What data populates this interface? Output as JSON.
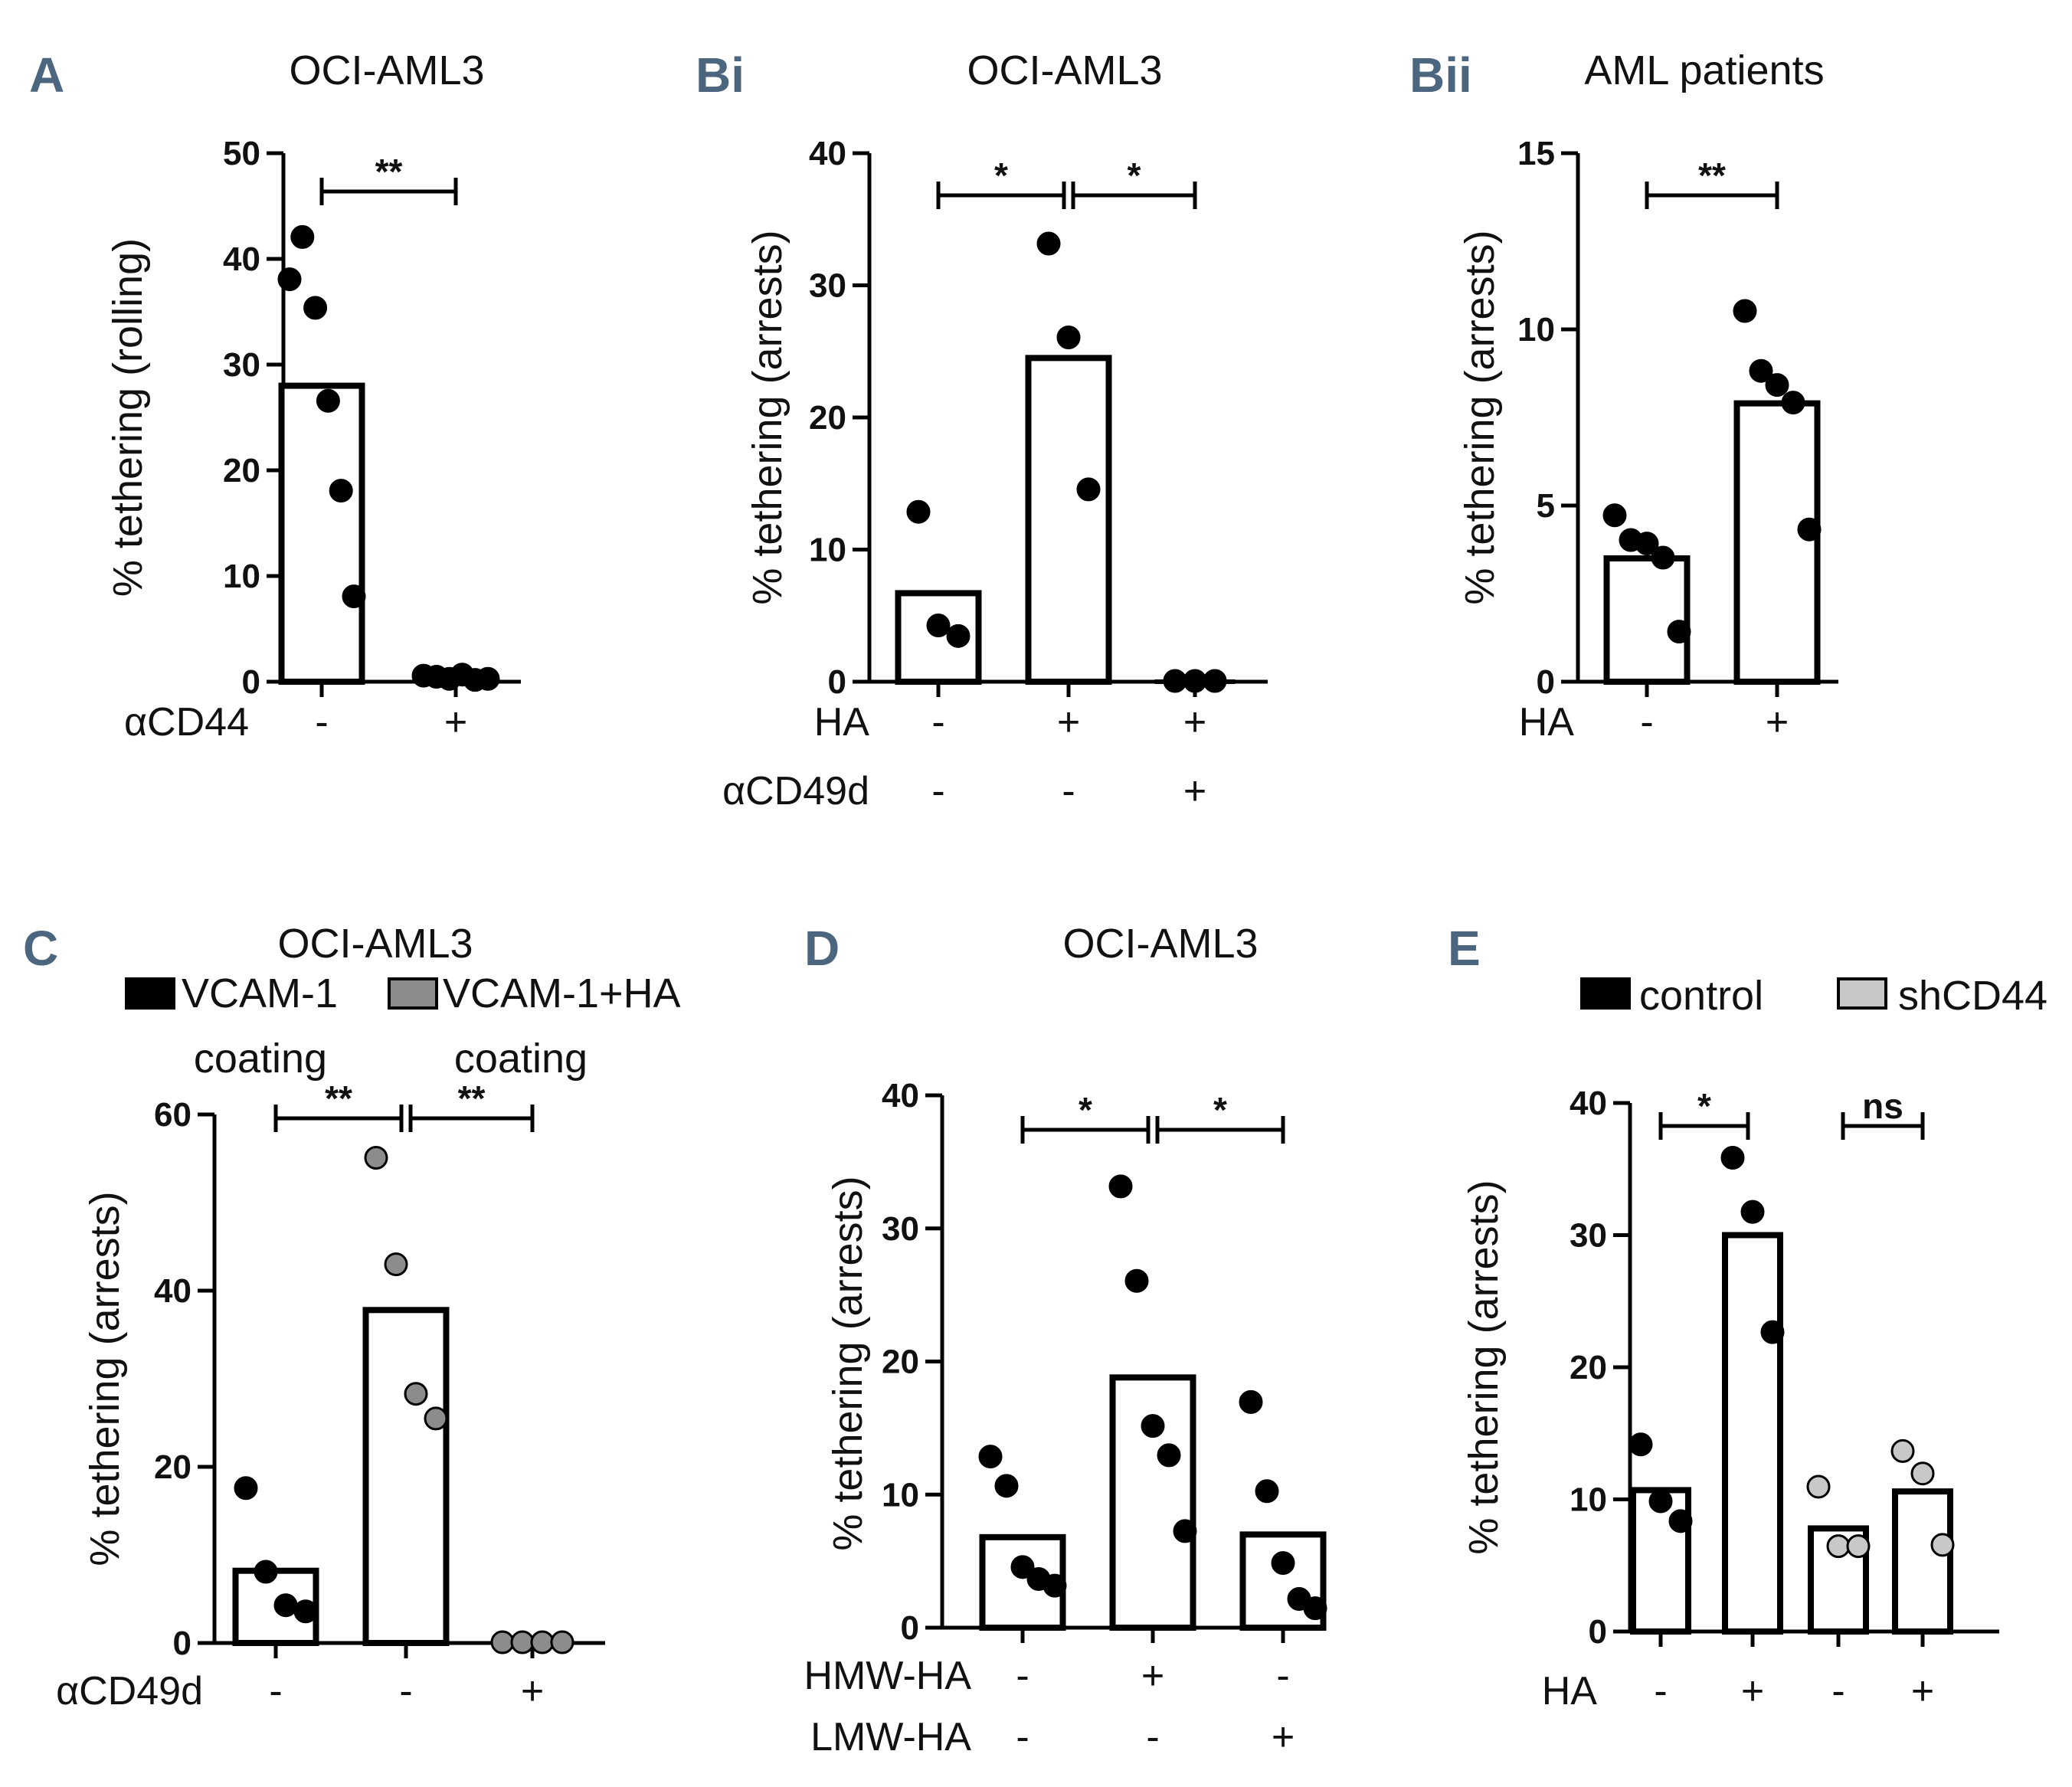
{
  "chart_data": [
    {
      "id": "A",
      "type": "bar",
      "panel_label": "A",
      "title": "OCI-AML3",
      "ylabel": "% tethering (rolling)",
      "ylim": [
        0,
        50
      ],
      "yticks": [
        0,
        10,
        20,
        30,
        40,
        50
      ],
      "series": [
        {
          "name": "OCI-AML3",
          "color": "#000000",
          "bars": [
            28,
            0.3
          ],
          "points": [
            [
              38,
              42,
              35.3,
              26.5,
              18,
              8
            ],
            [
              0.5,
              0.4,
              0.2,
              0.6,
              0.1,
              0.2
            ]
          ]
        }
      ],
      "conditions": [
        {
          "label": "αCD44",
          "values": [
            "-",
            "+"
          ]
        }
      ],
      "significance": [
        {
          "from": 0,
          "to": 1,
          "text": "**"
        }
      ]
    },
    {
      "id": "Bi",
      "type": "bar",
      "panel_label": "Bi",
      "title": "OCI-AML3",
      "ylabel": "% tethering (arrests)",
      "ylim": [
        0,
        40
      ],
      "yticks": [
        0,
        10,
        20,
        30,
        40
      ],
      "series": [
        {
          "name": "OCI-AML3",
          "color": "#000000",
          "bars": [
            6.7,
            24.5,
            0
          ],
          "points": [
            [
              12.8,
              4.2,
              3.4
            ],
            [
              33.1,
              26,
              14.5
            ],
            [
              0,
              0,
              0
            ]
          ]
        }
      ],
      "conditions": [
        {
          "label": "HA",
          "values": [
            "-",
            "+",
            "+"
          ]
        },
        {
          "label": "αCD49d",
          "values": [
            "-",
            "-",
            "+"
          ]
        }
      ],
      "significance": [
        {
          "from": 0,
          "to": 1,
          "text": "*"
        },
        {
          "from": 1,
          "to": 2,
          "text": "*"
        }
      ]
    },
    {
      "id": "Bii",
      "type": "bar",
      "panel_label": "Bii",
      "title": "AML patients",
      "ylabel": "% tethering (arrests)",
      "ylim": [
        0,
        15
      ],
      "yticks": [
        0,
        5,
        10,
        15
      ],
      "series": [
        {
          "name": "AML patients",
          "color": "#000000",
          "bars": [
            3.5,
            7.9
          ],
          "points": [
            [
              4.7,
              4,
              3.9,
              3.5,
              1.4
            ],
            [
              10.5,
              8.8,
              8.4,
              7.9,
              4.3
            ]
          ]
        }
      ],
      "conditions": [
        {
          "label": "HA",
          "values": [
            "-",
            "+"
          ]
        }
      ],
      "significance": [
        {
          "from": 0,
          "to": 1,
          "text": "**"
        }
      ]
    },
    {
      "id": "C",
      "type": "bar",
      "panel_label": "C",
      "title": "OCI-AML3",
      "ylabel": "% tethering (arrests)",
      "ylim": [
        0,
        60
      ],
      "yticks": [
        0,
        20,
        40,
        60
      ],
      "legend": [
        {
          "label": "VCAM-1",
          "sublabel": "coating",
          "color": "#000000"
        },
        {
          "label": "VCAM-1+HA",
          "sublabel": "coating",
          "color": "#8c8c8c"
        }
      ],
      "series": [
        {
          "name": "C",
          "color": "#000000",
          "bars": [
            8.2,
            37.8,
            0
          ],
          "bar_point_colors": [
            "#000000",
            "#8c8c8c",
            "#8c8c8c"
          ],
          "points": [
            [
              17.5,
              8,
              4.2,
              3.5
            ],
            [
              55,
              42.9,
              28.2,
              25.4
            ],
            [
              0,
              0,
              0,
              0
            ]
          ]
        }
      ],
      "conditions": [
        {
          "label": "αCD49d",
          "values": [
            "-",
            "-",
            "+"
          ]
        }
      ],
      "significance": [
        {
          "from": 0,
          "to": 1,
          "text": "**"
        },
        {
          "from": 1,
          "to": 2,
          "text": "**"
        }
      ]
    },
    {
      "id": "D",
      "type": "bar",
      "panel_label": "D",
      "title": "OCI-AML3",
      "ylabel": "% tethering (arrests)",
      "ylim": [
        0,
        40
      ],
      "yticks": [
        0,
        10,
        20,
        30,
        40
      ],
      "series": [
        {
          "name": "OCI-AML3",
          "color": "#000000",
          "bars": [
            6.8,
            18.8,
            7
          ],
          "points": [
            [
              12.8,
              10.6,
              4.5,
              3.6,
              3.1
            ],
            [
              33.1,
              26,
              15.1,
              12.9,
              7.2
            ],
            [
              16.9,
              10.2,
              4.8,
              2.1,
              1.4
            ]
          ]
        }
      ],
      "conditions": [
        {
          "label": "HMW-HA",
          "values": [
            "-",
            "+",
            "-"
          ]
        },
        {
          "label": "LMW-HA",
          "values": [
            "-",
            "-",
            "+"
          ]
        }
      ],
      "significance": [
        {
          "from": 0,
          "to": 1,
          "text": "*"
        },
        {
          "from": 1,
          "to": 2,
          "text": "*"
        }
      ]
    },
    {
      "id": "E",
      "type": "bar",
      "panel_label": "E",
      "title": "",
      "ylabel": "% tethering (arrests)",
      "ylim": [
        0,
        40
      ],
      "yticks": [
        0,
        10,
        20,
        30,
        40
      ],
      "legend": [
        {
          "label": "control",
          "color": "#000000"
        },
        {
          "label": "shCD44",
          "color": "#c8c8c8"
        }
      ],
      "series": [
        {
          "name": "E",
          "color": "#000000",
          "bars": [
            10.7,
            30,
            7.8,
            10.6
          ],
          "bar_point_colors": [
            "#000000",
            "#000000",
            "#c8c8c8",
            "#c8c8c8"
          ],
          "points": [
            [
              14.1,
              9.8,
              8.3
            ],
            [
              35.8,
              31.7,
              22.6
            ],
            [
              10.9,
              6.4,
              6.4
            ],
            [
              13.6,
              11.9,
              6.5
            ]
          ]
        }
      ],
      "conditions": [
        {
          "label": "HA",
          "values": [
            "-",
            "+",
            "-",
            "+"
          ]
        }
      ],
      "significance": [
        {
          "from": 0,
          "to": 1,
          "text": "*"
        },
        {
          "from": 2,
          "to": 3,
          "text": "ns"
        }
      ]
    }
  ]
}
